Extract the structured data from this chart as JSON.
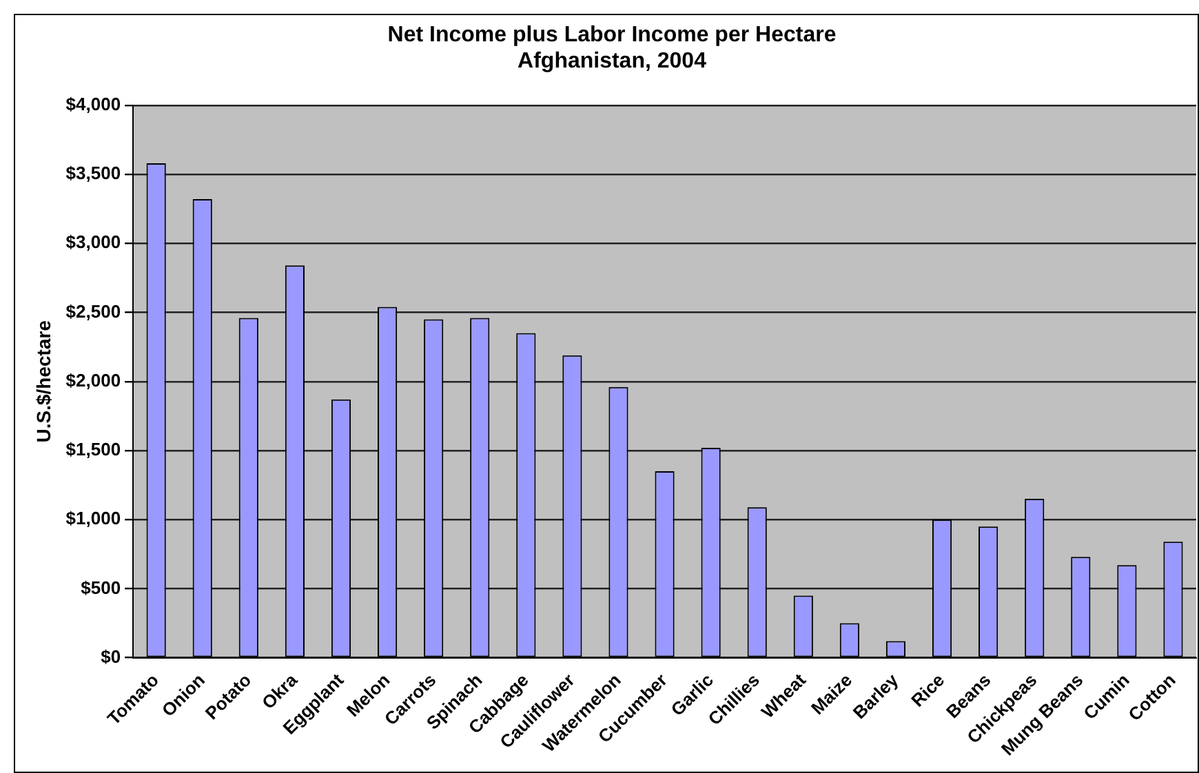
{
  "chart_data": {
    "type": "bar",
    "title": [
      "Net Income plus Labor Income per Hectare",
      "Afghanistan, 2004"
    ],
    "ylabel": "U.S.$/hectare",
    "categories": [
      "Tomato",
      "Onion",
      "Potato",
      "Okra",
      "Eggplant",
      "Melon",
      "Carrots",
      "Spinach",
      "Cabbage",
      "Cauliflower",
      "Watermelon",
      "Cucumber",
      "Garlic",
      "Chillies",
      "Wheat",
      "Maize",
      "Barley",
      "Rice",
      "Beans",
      "Chickpeas",
      "Mung Beans",
      "Cumin",
      "Cotton"
    ],
    "values": [
      3580,
      3320,
      2460,
      2840,
      1870,
      2540,
      2450,
      2460,
      2350,
      2190,
      1960,
      1350,
      1520,
      1090,
      450,
      250,
      120,
      1000,
      950,
      1150,
      730,
      670,
      840
    ],
    "color": "#9999ff",
    "ylim": [
      0,
      4000
    ],
    "yticks": [
      {
        "value": 0,
        "label": "$0"
      },
      {
        "value": 500,
        "label": "$500"
      },
      {
        "value": 1000,
        "label": "$1,000"
      },
      {
        "value": 1500,
        "label": "$1,500"
      },
      {
        "value": 2000,
        "label": "$2,000"
      },
      {
        "value": 2500,
        "label": "$2,500"
      },
      {
        "value": 3000,
        "label": "$3,000"
      },
      {
        "value": 3500,
        "label": "$3,500"
      },
      {
        "value": 4000,
        "label": "$4,000"
      }
    ],
    "grid": "y",
    "legend": false
  }
}
